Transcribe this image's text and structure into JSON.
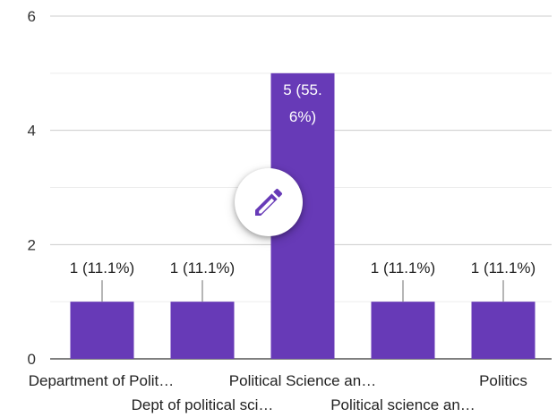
{
  "chart_data": {
    "type": "bar",
    "categories": [
      "Department of Polit…",
      "Dept of political sci…",
      "Political Science an…",
      "Political science an…",
      "Politics"
    ],
    "values": [
      1,
      1,
      5,
      1,
      1
    ],
    "data_labels": [
      "1 (11.1%)",
      "1 (11.1%)",
      "5 (55.6%)",
      "1 (11.1%)",
      "1 (11.1%)"
    ],
    "inside_label_lines": [
      "5 (55.",
      "6%)"
    ],
    "yticks": [
      0,
      2,
      4,
      6
    ],
    "ylim": [
      0,
      6
    ],
    "grid": true,
    "bar_color": "#673ab7",
    "gridline_color": "#e0e0e0",
    "title": "",
    "xlabel": "",
    "ylabel": ""
  },
  "edit_button": {
    "icon": "pencil-icon",
    "icon_color": "#673ab7"
  }
}
